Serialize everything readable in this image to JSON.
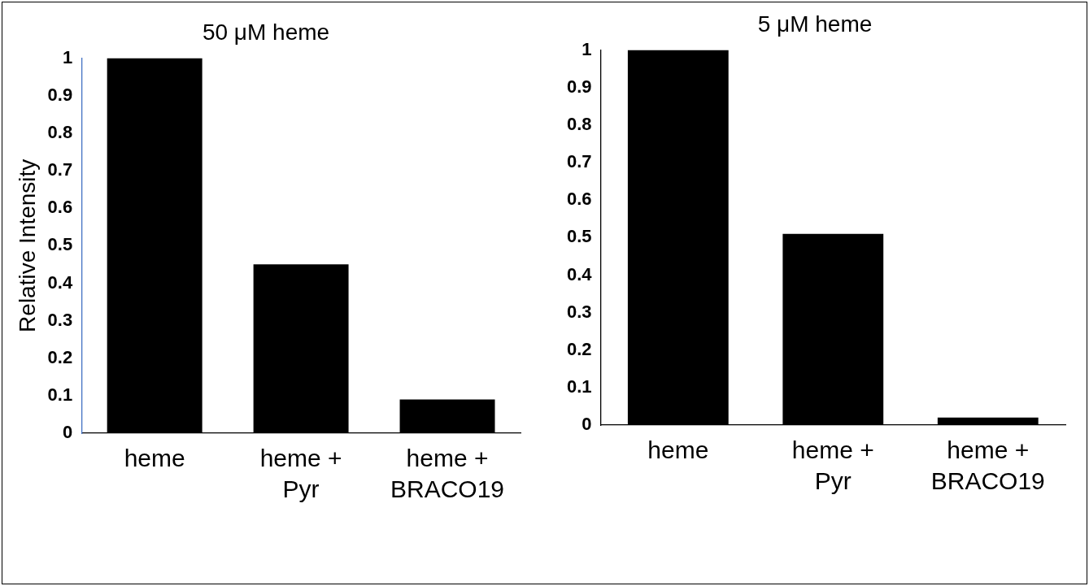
{
  "chart_data": [
    {
      "type": "bar",
      "title": "50 μM heme",
      "ylabel": "Relative Intensity",
      "categories": [
        "heme",
        "heme + Pyr",
        "heme + BRACO19"
      ],
      "values": [
        1,
        0.45,
        0.09
      ],
      "color": "#000000",
      "ylim": [
        0,
        1
      ],
      "yticks": [
        0,
        0.1,
        0.2,
        0.3,
        0.4,
        0.5,
        0.6,
        0.7,
        0.8,
        0.9,
        1
      ],
      "grid": false,
      "legend": false
    },
    {
      "type": "bar",
      "title": "5 μM heme",
      "categories": [
        "heme",
        "heme + Pyr",
        "heme + BRACO19"
      ],
      "values": [
        1,
        0.51,
        0.02
      ],
      "color": "#000000",
      "ylim": [
        0,
        1
      ],
      "yticks": [
        0,
        0.1,
        0.2,
        0.3,
        0.4,
        0.5,
        0.6,
        0.7,
        0.8,
        0.9,
        1
      ],
      "grid": false,
      "legend": false
    }
  ]
}
